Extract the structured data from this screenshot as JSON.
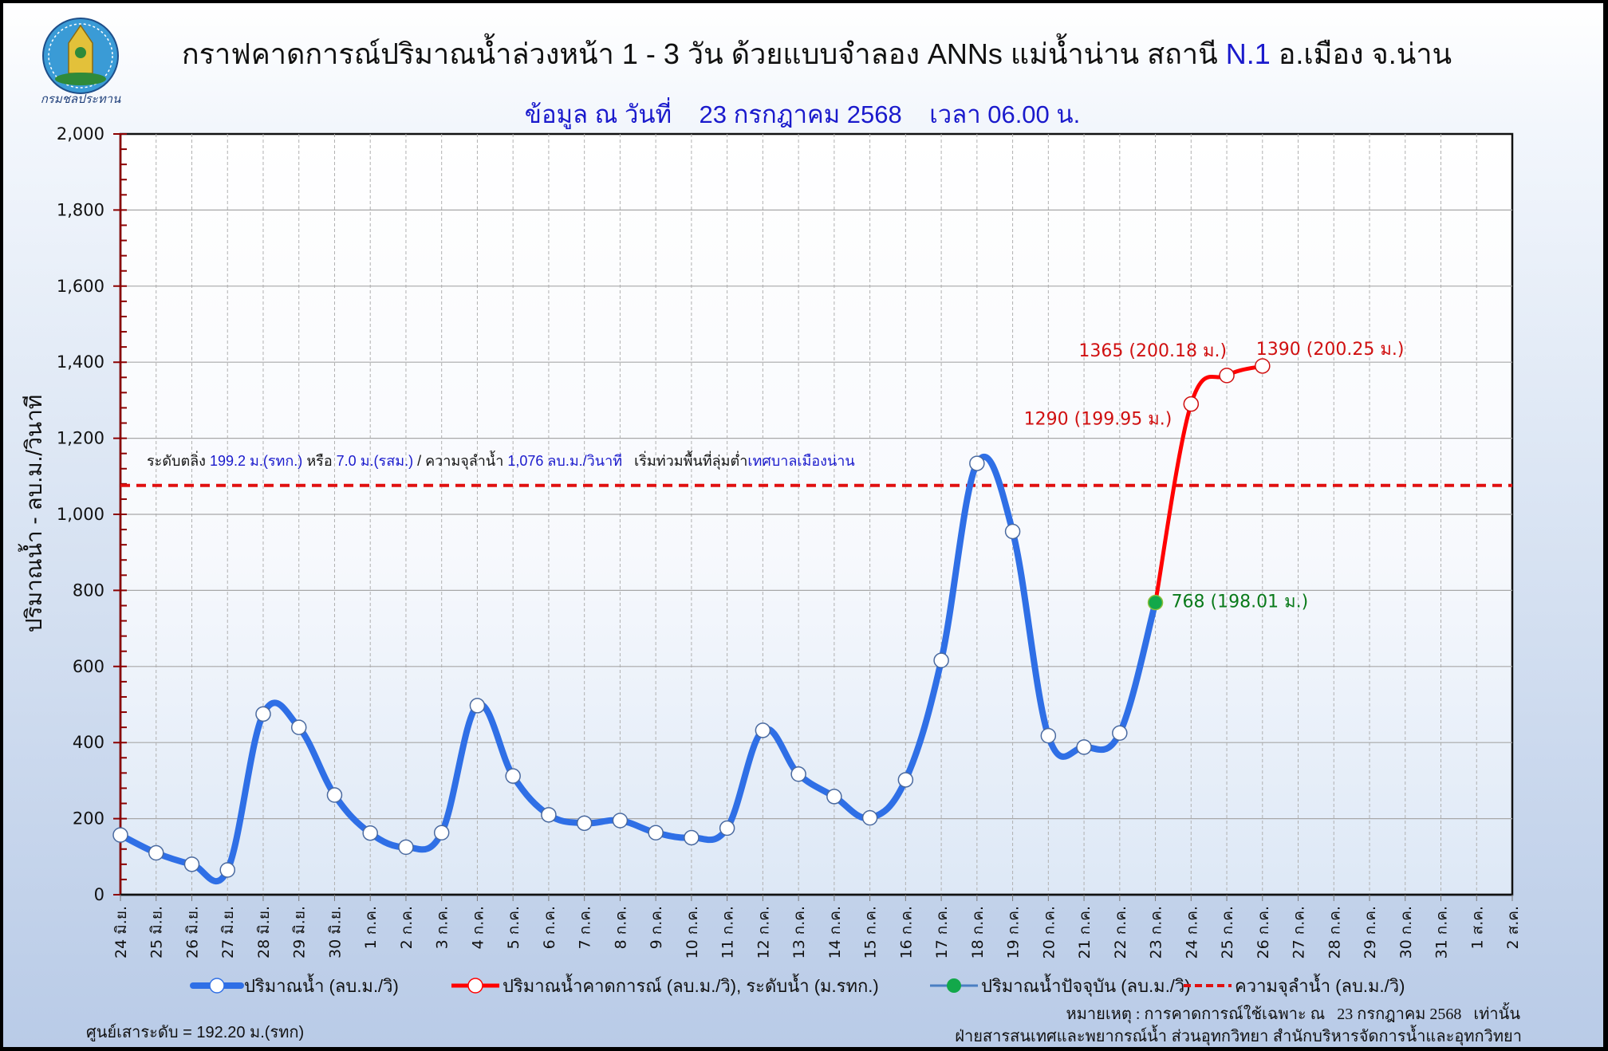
{
  "header": {
    "logo_text": "กรมชลประทาน",
    "title_part1": "กราฟคาดการณ์ปริมาณน้ำล่วงหน้า 1 - 3 วัน  ด้วยแบบจำลอง ANNs แม่น้ำน่าน สถานี ",
    "title_station": "N.1",
    "title_part2": " อ.เมือง จ.น่าน",
    "subtitle": "ข้อมูล ณ วันที่    23 กรกฎาคม 2568    เวลา 06.00 น."
  },
  "threshold_note": {
    "p1": "ระดับตลิ่ง ",
    "v1": "199.2 ม.(รทก.)",
    "p2": " หรือ ",
    "v2": "7.0 ม.(รสม.)",
    "p3": " / ความจุลำน้ำ ",
    "v3": "1,076 ลบ.ม./วินาที",
    "p4": "   เริ่มท่วมพื้นที่ลุ่มต่ำ",
    "v4": "เทศบาลเมืองน่าน"
  },
  "legend": {
    "observed": "ปริมาณน้ำ (ลบ.ม./วิ)",
    "forecast": "ปริมาณน้ำคาดการณ์  (ลบ.ม./วิ), ระดับน้ำ (ม.รทก.)",
    "current": "ปริมาณน้ำปัจจุบัน  (ลบ.ม./วิ)",
    "capacity": "ความจุลำน้ำ  (ลบ.ม./วิ)"
  },
  "footer": {
    "gauge_zero": "ศูนย์เสาระดับ = 192.20 ม.(รทก)",
    "remark": "หมายเหตุ : การคาดการณ์ใช้เฉพาะ ณ   23 กรกฎาคม 2568   เท่านั้น",
    "agency": "ฝ่ายสารสนเทศและพยากรณ์น้ำ ส่วนอุทกวิทยา สำนักบริหารจัดการน้ำและอุทกวิทยา"
  },
  "colors": {
    "observed": "#2f6fe6",
    "forecast": "#ff0000",
    "current": "#12a84a",
    "capacity": "#e01010",
    "axis_red": "#8b0000",
    "blue_text": "#1a1acc",
    "annotation_red": "#d01010",
    "annotation_green": "#0a7a1a"
  },
  "chart_data": {
    "type": "line",
    "title": "กราฟคาดการณ์ปริมาณน้ำล่วงหน้า 1 - 3 วัน  ด้วยแบบจำลอง ANNs แม่น้ำน่าน สถานี N.1 อ.เมือง จ.น่าน",
    "subtitle": "ข้อมูล ณ วันที่ 23 กรกฎาคม 2568 เวลา 06.00 น.",
    "xlabel": "",
    "ylabel": "ปริมาณน้ำ - ลบ.ม./วินาที",
    "ylim": [
      0,
      2000
    ],
    "yticks": [
      "0",
      "200",
      "400",
      "600",
      "800",
      "1,000",
      "1,200",
      "1,400",
      "1,600",
      "1,800",
      "2,000"
    ],
    "grid": true,
    "legend_position": "bottom",
    "categories": [
      "24 มิ.ย.",
      "25 มิ.ย.",
      "26 มิ.ย.",
      "27 มิ.ย.",
      "28 มิ.ย.",
      "29 มิ.ย.",
      "30 มิ.ย.",
      "1 ก.ค.",
      "2 ก.ค.",
      "3 ก.ค.",
      "4 ก.ค.",
      "5 ก.ค.",
      "6 ก.ค.",
      "7 ก.ค.",
      "8 ก.ค.",
      "9 ก.ค.",
      "10 ก.ค.",
      "11 ก.ค.",
      "12 ก.ค.",
      "13 ก.ค.",
      "14 ก.ค.",
      "15 ก.ค.",
      "16 ก.ค.",
      "17 ก.ค.",
      "18 ก.ค.",
      "19 ก.ค.",
      "20 ก.ค.",
      "21 ก.ค.",
      "22 ก.ค.",
      "23 ก.ค.",
      "24 ก.ค.",
      "25 ก.ค.",
      "26 ก.ค.",
      "27 ก.ค.",
      "28 ก.ค.",
      "29 ก.ค.",
      "30 ก.ค.",
      "31 ก.ค.",
      "1 ส.ค.",
      "2 ส.ค."
    ],
    "series": [
      {
        "name": "ปริมาณน้ำ (ลบ.ม./วิ)",
        "start_index": 0,
        "values": [
          157,
          110,
          80,
          65,
          475,
          440,
          262,
          162,
          125,
          163,
          497,
          312,
          210,
          188,
          195,
          163,
          150,
          175,
          432,
          317,
          258,
          202,
          302,
          616,
          1134,
          955,
          418,
          388,
          425,
          768
        ]
      },
      {
        "name": "ปริมาณน้ำคาดการณ์ (ลบ.ม./วิ), ระดับน้ำ (ม.รทก.)",
        "start_index": 29,
        "values": [
          768,
          1290,
          1365,
          1390
        ]
      },
      {
        "name": "ปริมาณน้ำปัจจุบัน (ลบ.ม./วิ)",
        "start_index": 29,
        "values": [
          768
        ]
      },
      {
        "name": "ความจุลำน้ำ (ลบ.ม./วิ)",
        "constant": 1076
      }
    ],
    "annotations": [
      {
        "index": 29,
        "text": "768 (198.01 ม.)",
        "color": "green"
      },
      {
        "index": 30,
        "text": "1290 (199.95 ม.)",
        "color": "red"
      },
      {
        "index": 31,
        "text": "1365 (200.18 ม.)",
        "color": "red"
      },
      {
        "index": 32,
        "text": "1390 (200.25 ม.)",
        "color": "red"
      }
    ]
  }
}
